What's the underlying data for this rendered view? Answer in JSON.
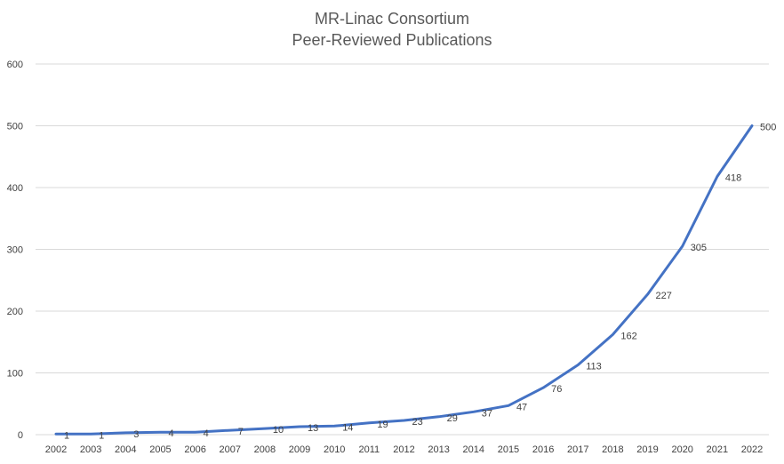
{
  "chart_data": {
    "type": "line",
    "title": [
      "MR-Linac Consortium",
      "Peer-Reviewed Publications"
    ],
    "categories": [
      "2002",
      "2003",
      "2004",
      "2005",
      "2006",
      "2007",
      "2008",
      "2009",
      "2010",
      "2011",
      "2012",
      "2013",
      "2014",
      "2015",
      "2016",
      "2017",
      "2018",
      "2019",
      "2020",
      "2021",
      "2022"
    ],
    "series": [
      {
        "values": [
          1,
          1,
          3,
          4,
          4,
          7,
          10,
          13,
          14,
          19,
          23,
          29,
          37,
          47,
          76,
          113,
          162,
          227,
          305,
          418,
          500
        ]
      }
    ],
    "ylim": [
      0,
      600
    ],
    "yticks": [
      0,
      100,
      200,
      300,
      400,
      500,
      600
    ],
    "grid": "horizontal",
    "line_color": "#4472c4",
    "grid_color": "#d9d9d9"
  }
}
